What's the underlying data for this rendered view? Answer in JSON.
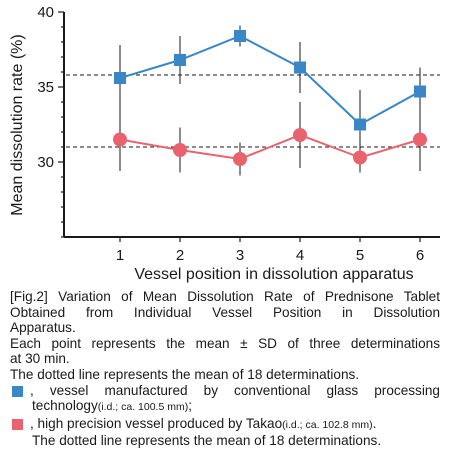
{
  "chart_data": {
    "type": "line",
    "title": "",
    "xlabel": "Vessel position in dissolution apparatus",
    "ylabel": "Mean dissolution rate (%)",
    "categories": [
      "1",
      "2",
      "3",
      "4",
      "5",
      "6"
    ],
    "ylim": [
      25,
      40
    ],
    "yticks": [
      30,
      35,
      40
    ],
    "grid": false,
    "series": [
      {
        "marker": "square",
        "color": "#3a87c6",
        "values": [
          35.6,
          36.8,
          38.4,
          36.3,
          32.5,
          34.7
        ],
        "sd": [
          2.2,
          1.6,
          0.7,
          1.7,
          2.3,
          1.6
        ],
        "mean_line": 35.8
      },
      {
        "marker": "circle",
        "color": "#e9636e",
        "values": [
          31.5,
          30.8,
          30.2,
          31.8,
          30.3,
          31.5
        ],
        "sd": [
          2.1,
          1.5,
          1.1,
          2.2,
          1.0,
          2.1
        ],
        "mean_line": 31.0
      }
    ]
  },
  "caption": {
    "fig_line1": "[Fig.2] Variation of Mean Dissolution Rate of Prednisone Tablet",
    "fig_line2": "Obtained from Individual Vessel Position in Dissolution",
    "fig_line3": "Apparatus.",
    "each_point_line1": "Each point represents the mean ± SD of three determinations",
    "each_point_line2": "at 30 min.",
    "dotted_line": "The dotted line represents the mean of 18 determinations.",
    "legend_blue_line1": ",  vessel manufactured by conventional glass processing",
    "legend_blue_line2_main": "technology",
    "legend_blue_line2_small": "(i.d.; ca. 100.5 mm)",
    "legend_blue_line2_end": ";",
    "legend_red_main": ",  high precision vessel produced by Takao",
    "legend_red_small": "(i.d.; ca. 102.8 mm)",
    "legend_red_end": ".",
    "legend_red_line2": "The dotted line represents the mean of 18 determinations."
  }
}
